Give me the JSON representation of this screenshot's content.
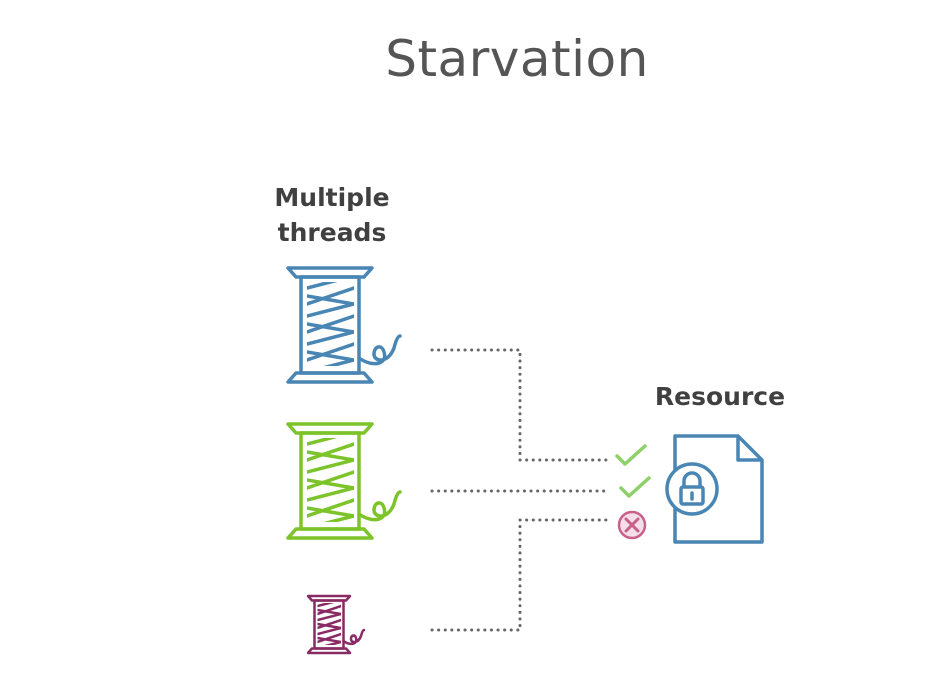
{
  "title": "Starvation",
  "threads": {
    "label_line1": "Multiple",
    "label_line2": "threads",
    "spools": [
      {
        "name": "thread-1",
        "color": "#4a86b4"
      },
      {
        "name": "thread-2",
        "color": "#7dc42a"
      },
      {
        "name": "thread-3",
        "color": "#8a2a64"
      }
    ]
  },
  "resource": {
    "label": "Resource",
    "color": "#4a86b4",
    "icon": "locked-document-icon"
  },
  "access": [
    {
      "thread": "thread-1",
      "status": "granted",
      "icon": "check-icon",
      "color": "#8ed06a"
    },
    {
      "thread": "thread-2",
      "status": "granted",
      "icon": "check-icon",
      "color": "#8ed06a"
    },
    {
      "thread": "thread-3",
      "status": "denied",
      "icon": "x-circle-icon",
      "color": "#c9608a"
    }
  ],
  "connector_color": "#666666"
}
